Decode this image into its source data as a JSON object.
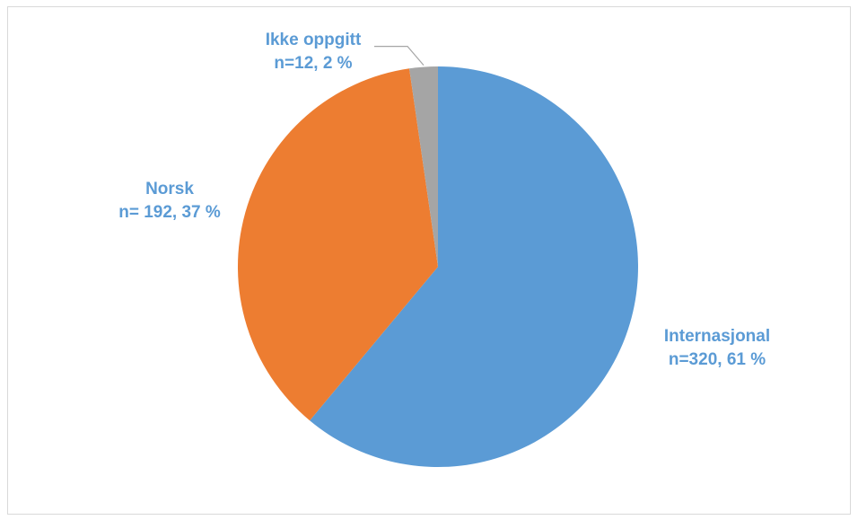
{
  "chart_data": {
    "type": "pie",
    "title": "",
    "start_angle_deg": 0,
    "direction": "clockwise",
    "slices": [
      {
        "name": "Internasjonal",
        "value": 320,
        "percent_label": "n=320, 61 %",
        "color": "#5b9bd5"
      },
      {
        "name": "Norsk",
        "value": 192,
        "percent_label": "n= 192, 37 %",
        "color": "#ed7d31"
      },
      {
        "name": "Ikke oppgitt",
        "value": 12,
        "percent_label": "n=12, 2 %",
        "color": "#a5a5a5"
      }
    ],
    "label_color": "#5b9bd5",
    "legend": "none"
  }
}
